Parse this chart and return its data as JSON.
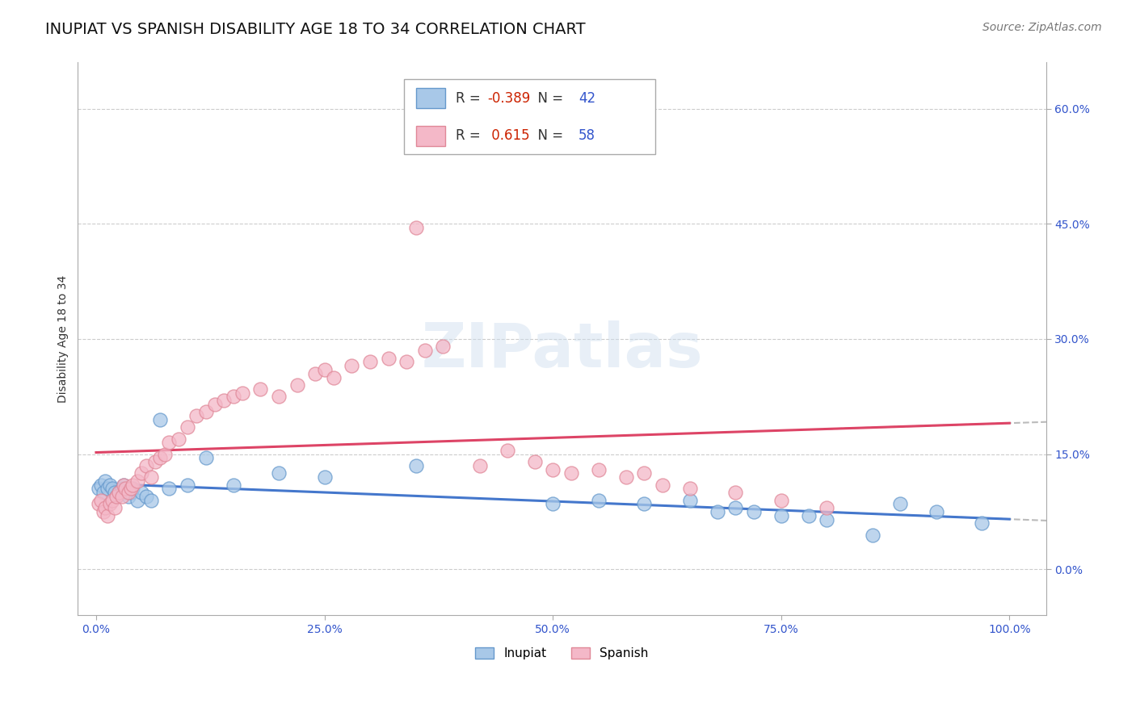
{
  "title": "INUPIAT VS SPANISH DISABILITY AGE 18 TO 34 CORRELATION CHART",
  "source": "Source: ZipAtlas.com",
  "ylabel": "Disability Age 18 to 34",
  "xlim": [
    -2.0,
    104.0
  ],
  "ylim": [
    -6.0,
    66.0
  ],
  "yticks": [
    0.0,
    15.0,
    30.0,
    45.0,
    60.0
  ],
  "xticks": [
    0.0,
    25.0,
    50.0,
    75.0,
    100.0
  ],
  "xtick_labels": [
    "0.0%",
    "25.0%",
    "50.0%",
    "75.0%",
    "100.0%"
  ],
  "ytick_labels": [
    "0.0%",
    "15.0%",
    "30.0%",
    "45.0%",
    "60.0%"
  ],
  "inupiat_color": "#a8c8e8",
  "spanish_color": "#f4b8c8",
  "inupiat_edge": "#6699cc",
  "spanish_edge": "#e08898",
  "line_blue": "#4477cc",
  "line_pink": "#dd4466",
  "line_dash_color": "#bbbbbb",
  "R_inupiat": -0.389,
  "N_inupiat": 42,
  "R_spanish": 0.615,
  "N_spanish": 58,
  "legend_label_inupiat": "Inupiat",
  "legend_label_spanish": "Spanish",
  "watermark": "ZIPatlas",
  "inupiat_x": [
    0.3,
    0.5,
    0.8,
    1.0,
    1.2,
    1.5,
    1.8,
    2.0,
    2.2,
    2.5,
    2.8,
    3.0,
    3.2,
    3.5,
    3.8,
    4.0,
    4.5,
    5.0,
    5.5,
    6.0,
    7.0,
    8.0,
    10.0,
    12.0,
    15.0,
    20.0,
    25.0,
    35.0,
    50.0,
    55.0,
    60.0,
    65.0,
    68.0,
    70.0,
    72.0,
    75.0,
    78.0,
    80.0,
    85.0,
    88.0,
    92.0,
    97.0
  ],
  "inupiat_y": [
    10.5,
    11.0,
    10.0,
    11.5,
    10.5,
    11.0,
    10.5,
    10.0,
    9.5,
    10.0,
    10.5,
    11.0,
    10.0,
    9.5,
    10.0,
    10.5,
    9.0,
    10.0,
    9.5,
    9.0,
    19.5,
    10.5,
    11.0,
    14.5,
    11.0,
    12.5,
    12.0,
    13.5,
    8.5,
    9.0,
    8.5,
    9.0,
    7.5,
    8.0,
    7.5,
    7.0,
    7.0,
    6.5,
    4.5,
    8.5,
    7.5,
    6.0
  ],
  "spanish_x": [
    0.3,
    0.5,
    0.8,
    1.0,
    1.2,
    1.5,
    1.8,
    2.0,
    2.2,
    2.5,
    2.8,
    3.0,
    3.2,
    3.5,
    3.8,
    4.0,
    4.5,
    5.0,
    5.5,
    6.0,
    6.5,
    7.0,
    7.5,
    8.0,
    9.0,
    10.0,
    11.0,
    12.0,
    13.0,
    14.0,
    15.0,
    16.0,
    18.0,
    20.0,
    22.0,
    24.0,
    25.0,
    26.0,
    28.0,
    30.0,
    32.0,
    34.0,
    35.0,
    36.0,
    38.0,
    42.0,
    45.0,
    48.0,
    50.0,
    52.0,
    55.0,
    58.0,
    60.0,
    62.0,
    65.0,
    70.0,
    75.0,
    80.0
  ],
  "spanish_y": [
    8.5,
    9.0,
    7.5,
    8.0,
    7.0,
    8.5,
    9.0,
    8.0,
    9.5,
    10.0,
    9.5,
    11.0,
    10.5,
    10.0,
    10.5,
    11.0,
    11.5,
    12.5,
    13.5,
    12.0,
    14.0,
    14.5,
    15.0,
    16.5,
    17.0,
    18.5,
    20.0,
    20.5,
    21.5,
    22.0,
    22.5,
    23.0,
    23.5,
    22.5,
    24.0,
    25.5,
    26.0,
    25.0,
    26.5,
    27.0,
    27.5,
    27.0,
    44.5,
    28.5,
    29.0,
    13.5,
    15.5,
    14.0,
    13.0,
    12.5,
    13.0,
    12.0,
    12.5,
    11.0,
    10.5,
    10.0,
    9.0,
    8.0
  ],
  "background_color": "#ffffff",
  "grid_color": "#cccccc",
  "title_fontsize": 14,
  "axis_label_fontsize": 10,
  "tick_fontsize": 10,
  "legend_fontsize": 12,
  "source_fontsize": 10,
  "R_color": "#cc2200",
  "N_color": "#3355cc"
}
